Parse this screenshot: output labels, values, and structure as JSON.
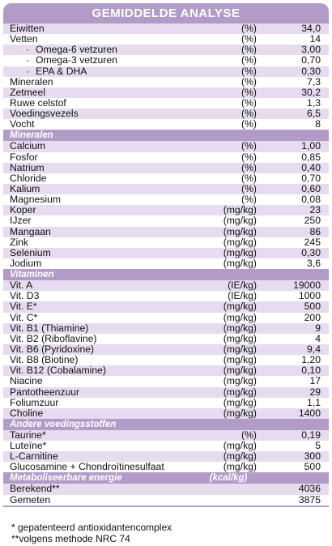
{
  "title": "GEMIDDELDE ANALYSE",
  "colors": {
    "header_purple": "#b39bc8",
    "row_light": "#e6dbef"
  },
  "sections": [
    {
      "heading": "",
      "rows": [
        {
          "label": "Eiwitten",
          "unit": "(%)",
          "value": "34,0"
        },
        {
          "label": "Vetten",
          "unit": "(%)",
          "value": "14"
        },
        {
          "label": "Omega-6 vetzuren",
          "unit": "(%)",
          "value": "3,00",
          "sub": true
        },
        {
          "label": "Omega-3 vetzuren",
          "unit": "(%)",
          "value": "0,70",
          "sub": true
        },
        {
          "label": "EPA & DHA",
          "unit": "(%)",
          "value": "0,30",
          "sub": true
        },
        {
          "label": "Mineralen",
          "unit": "(%)",
          "value": "7,3"
        },
        {
          "label": "Zetmeel",
          "unit": "(%)",
          "value": "30,2"
        },
        {
          "label": "Ruwe celstof",
          "unit": "(%)",
          "value": "1,3"
        },
        {
          "label": "Voedingsvezels",
          "unit": "(%)",
          "value": "6,5"
        },
        {
          "label": "Vocht",
          "unit": "(%)",
          "value": "8"
        }
      ]
    },
    {
      "heading": "Mineralen",
      "rows": [
        {
          "label": "Calcium",
          "unit": "(%)",
          "value": "1,00"
        },
        {
          "label": "Fosfor",
          "unit": "(%)",
          "value": "0,85"
        },
        {
          "label": "Natrium",
          "unit": "(%)",
          "value": "0,40"
        },
        {
          "label": "Chloride",
          "unit": "(%)",
          "value": "0,70"
        },
        {
          "label": "Kalium",
          "unit": "(%)",
          "value": "0,60"
        },
        {
          "label": "Magnesium",
          "unit": "(%)",
          "value": "0,08"
        },
        {
          "label": "Koper",
          "unit": "(mg/kg)",
          "value": "23"
        },
        {
          "label": "IJzer",
          "unit": "(mg/kg)",
          "value": "250"
        },
        {
          "label": "Mangaan",
          "unit": "(mg/kg)",
          "value": "86"
        },
        {
          "label": "Zink",
          "unit": "(mg/kg)",
          "value": "245"
        },
        {
          "label": "Selenium",
          "unit": "(mg/kg)",
          "value": "0,30"
        },
        {
          "label": "Jodium",
          "unit": "(mg/kg)",
          "value": "3,6"
        }
      ]
    },
    {
      "heading": "Vitaminen",
      "rows": [
        {
          "label": "Vit. A",
          "unit": "(IE/kg)",
          "value": "19000"
        },
        {
          "label": "Vit. D3",
          "unit": "(IE/kg)",
          "value": "1000"
        },
        {
          "label": "Vit. E*",
          "unit": "(mg/kg)",
          "value": "500"
        },
        {
          "label": "Vit. C*",
          "unit": "(mg/kg)",
          "value": "200"
        },
        {
          "label": "Vit. B1 (Thiamine)",
          "unit": "(mg/kg)",
          "value": "9"
        },
        {
          "label": "Vit. B2 (Riboflavine)",
          "unit": "(mg/kg)",
          "value": "4"
        },
        {
          "label": "Vit. B6 (Pyridoxine)",
          "unit": "(mg/kg)",
          "value": "9,4"
        },
        {
          "label": "Vit. B8 (Biotine)",
          "unit": "(mg/kg)",
          "value": "1,20"
        },
        {
          "label": "Vit. B12 (Cobalamine)",
          "unit": "(mg/kg)",
          "value": "0,10"
        },
        {
          "label": "Niacine",
          "unit": "(mg/kg)",
          "value": "17"
        },
        {
          "label": "Pantotheenzuur",
          "unit": "(mg/kg)",
          "value": "29"
        },
        {
          "label": "Foliumzuur",
          "unit": "(mg/kg)",
          "value": "1,1"
        },
        {
          "label": "Choline",
          "unit": "(mg/kg)",
          "value": "1400"
        }
      ]
    },
    {
      "heading": "Andere voedingsstoffen",
      "rows": [
        {
          "label": "Taurine*",
          "unit": "(%)",
          "value": "0,19"
        },
        {
          "label": "Luteïne*",
          "unit": "(mg/kg)",
          "value": "5"
        },
        {
          "label": "L-Carnitine",
          "unit": "(mg/kg)",
          "value": "300"
        },
        {
          "label": "Glucosamine + Chondroïtinesulfaat",
          "unit": "(mg/kg)",
          "value": "500"
        }
      ]
    },
    {
      "heading": "Metaboliseerbare energie",
      "heading_unit": "(kcal/kg)",
      "rows": [
        {
          "label": "Berekend**",
          "unit": "",
          "value": "4036"
        },
        {
          "label": "Gemeten",
          "unit": "",
          "value": "3875"
        }
      ]
    }
  ],
  "notes": [
    "*  gepatenteerd antioxidantencomplex",
    "**volgens methode NRC 74"
  ]
}
